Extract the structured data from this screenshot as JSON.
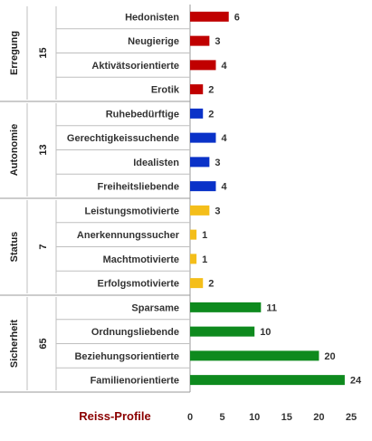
{
  "chart_data": {
    "type": "bar",
    "orientation": "horizontal",
    "xlabel": "Reiss-Profile",
    "xlim": [
      0,
      25
    ],
    "xticks": [
      "0",
      "5",
      "10",
      "15",
      "20",
      "25"
    ],
    "grid": false,
    "colors": {
      "Erregung": "#c00000",
      "Autonomie": "#0a32c8",
      "Status": "#f4be1a",
      "Sicherheit": "#0e8a1e",
      "axis_title": "#8b0000"
    },
    "groups": [
      {
        "name": "Erregung",
        "total": "15",
        "categories": [
          "Hedonisten",
          "Neugierige",
          "Aktivätsorientierte",
          "Erotik"
        ],
        "values": [
          6,
          3,
          4,
          2
        ]
      },
      {
        "name": "Autonomie",
        "total": "13",
        "categories": [
          "Ruhebedürftige",
          "Gerechtigkeissuchende",
          "Idealisten",
          "Freiheitsliebende"
        ],
        "values": [
          2,
          4,
          3,
          4
        ]
      },
      {
        "name": "Status",
        "total": "7",
        "categories": [
          "Leistungsmotivierte",
          "Anerkennungssucher",
          "Machtmotivierte",
          "Erfolgsmotivierte"
        ],
        "values": [
          3,
          1,
          1,
          2
        ]
      },
      {
        "name": "Sicherheit",
        "total": "65",
        "categories": [
          "Sparsame",
          "Ordnungsliebende",
          "Beziehungsorientierte",
          "Familienorientierte"
        ],
        "values": [
          11,
          10,
          20,
          24
        ]
      }
    ]
  }
}
